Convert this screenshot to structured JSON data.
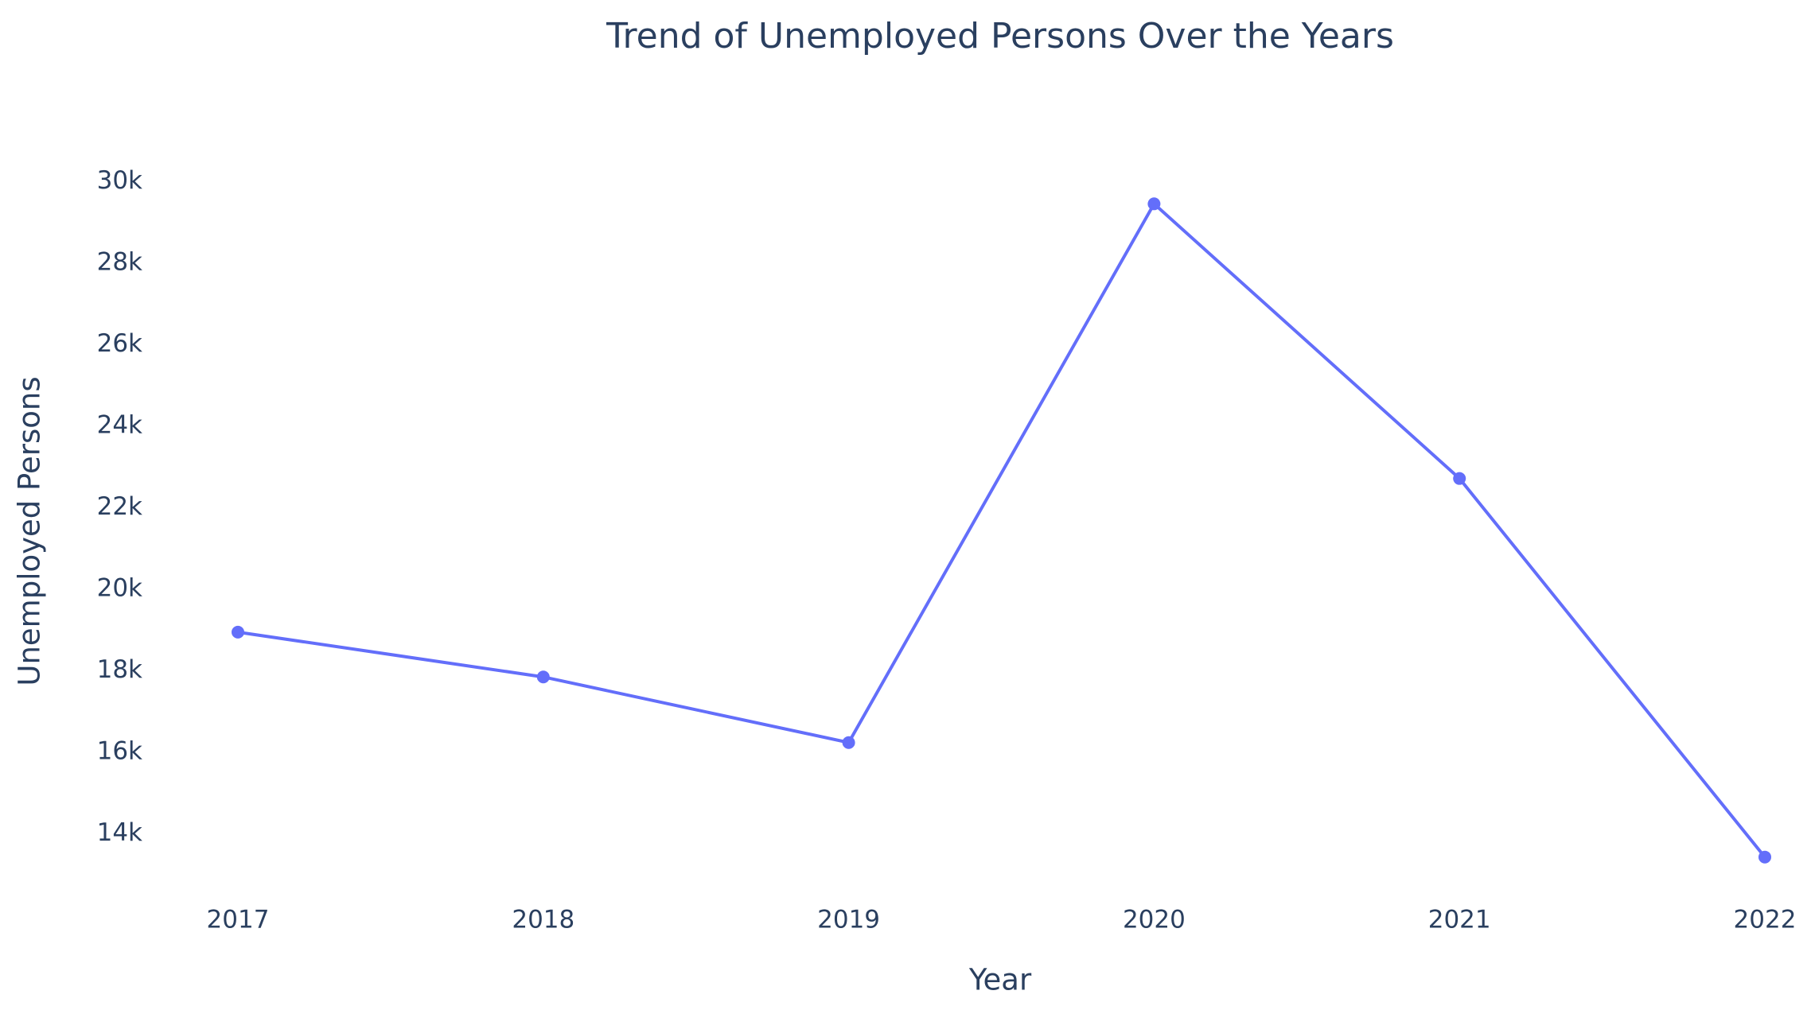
{
  "chart_data": {
    "type": "line",
    "title": "Trend of Unemployed Persons Over the Years",
    "x_label": "Year",
    "y_label": "Unemployed Persons",
    "x": [
      2017,
      2018,
      2019,
      2020,
      2021,
      2022
    ],
    "series": [
      {
        "name": "Unemployed Persons",
        "color": "#636efa",
        "values": [
          18950,
          17850,
          16240,
          29460,
          22720,
          13430
        ]
      }
    ],
    "xlim": [
      2017,
      2022
    ],
    "xticks": [
      2017,
      2018,
      2019,
      2020,
      2021,
      2022
    ],
    "ylim": [
      12800,
      30500
    ],
    "yticks": [
      {
        "value": 14000,
        "label": "14k"
      },
      {
        "value": 16000,
        "label": "16k"
      },
      {
        "value": 18000,
        "label": "18k"
      },
      {
        "value": 20000,
        "label": "20k"
      },
      {
        "value": 22000,
        "label": "22k"
      },
      {
        "value": 24000,
        "label": "24k"
      },
      {
        "value": 26000,
        "label": "26k"
      },
      {
        "value": 28000,
        "label": "28k"
      },
      {
        "value": 30000,
        "label": "30k"
      }
    ],
    "grid": false
  }
}
